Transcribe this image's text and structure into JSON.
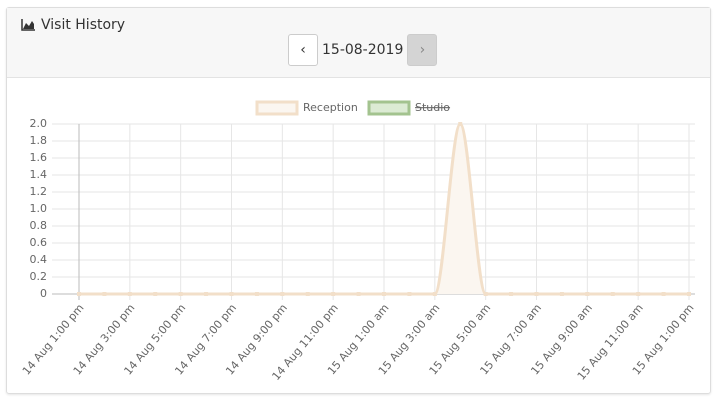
{
  "header": {
    "title": "Visit History"
  },
  "pager": {
    "prev": "‹",
    "date": "15-08-2019",
    "next": "›"
  },
  "chart_data": {
    "type": "line",
    "categories": [
      "14 Aug 1:00 pm",
      null,
      "14 Aug 3:00 pm",
      null,
      "14 Aug 5:00 pm",
      null,
      "14 Aug 7:00 pm",
      null,
      "14 Aug 9:00 pm",
      null,
      "14 Aug 11:00 pm",
      null,
      "15 Aug 1:00 am",
      null,
      "15 Aug 3:00 am",
      null,
      "15 Aug 5:00 am",
      null,
      "15 Aug 7:00 am",
      null,
      "15 Aug 9:00 am",
      null,
      "15 Aug 11:00 am",
      null,
      "15 Aug 1:00 pm"
    ],
    "series": [
      {
        "name": "Reception",
        "color": "#f2dfc9",
        "fill": "#fbf6f0",
        "values": [
          0,
          0,
          0,
          0,
          0,
          0,
          0,
          0,
          0,
          0,
          0,
          0,
          0,
          0,
          0,
          2,
          0,
          0,
          0,
          0,
          0,
          0,
          0,
          0,
          0
        ]
      },
      {
        "name": "Studio",
        "color": "#a3c38f",
        "fill": "#dcebd4",
        "hidden": true
      }
    ],
    "ylim": [
      0,
      2
    ],
    "yticks": [
      0,
      0.2,
      0.4,
      0.6,
      0.8,
      {
        "value": 1,
        "label": "1.0"
      },
      1.2,
      1.4,
      1.6,
      1.8,
      {
        "value": 2,
        "label": "2.0"
      }
    ],
    "grid": true,
    "legend": "top"
  }
}
